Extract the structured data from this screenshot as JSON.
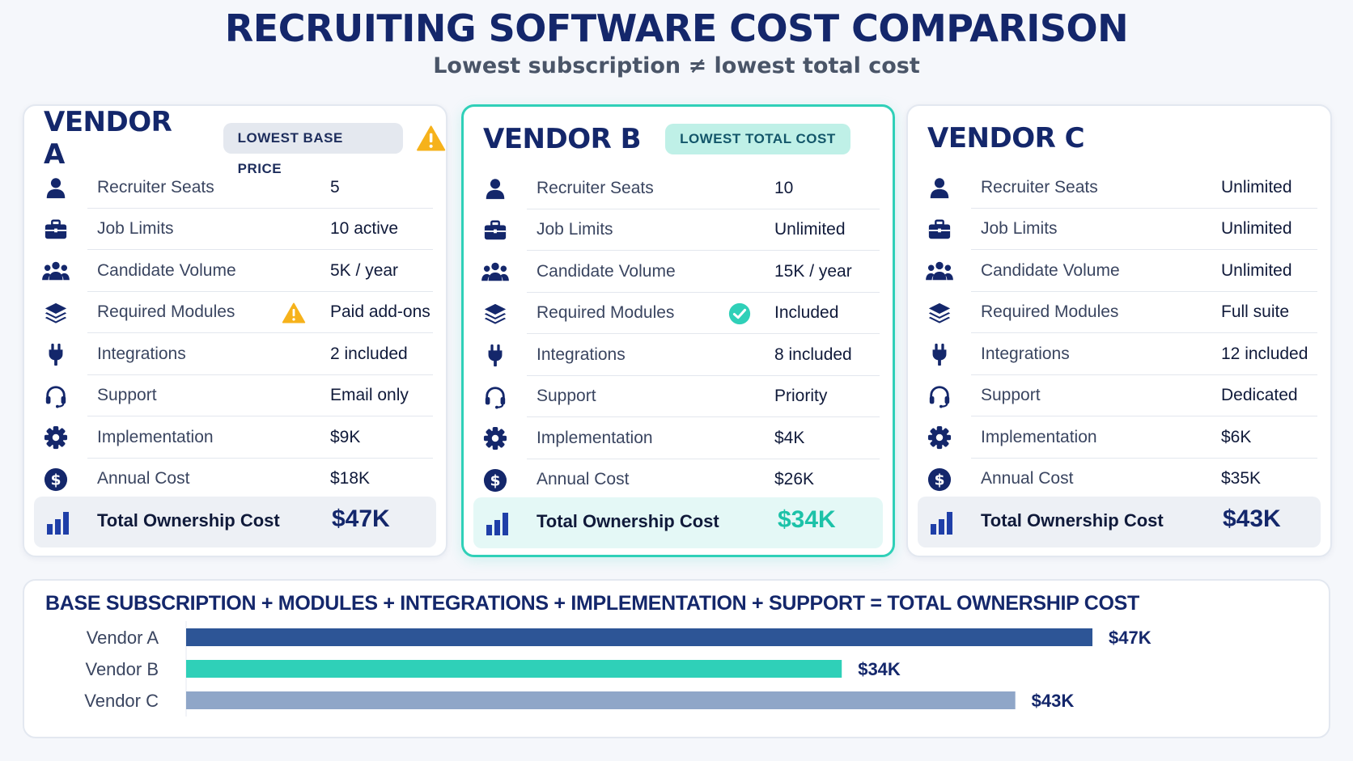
{
  "header": {
    "title": "RECRUITING SOFTWARE COST COMPARISON",
    "subtitle": "Lowest subscription ≠ lowest total cost"
  },
  "row_labels": [
    "Recruiter Seats",
    "Job Limits",
    "Candidate Volume",
    "Required Modules",
    "Integrations",
    "Support",
    "Implementation",
    "Annual Cost"
  ],
  "row_icons": [
    "user-icon",
    "briefcase-icon",
    "group-icon",
    "layers-icon",
    "plug-icon",
    "headset-icon",
    "gear-icon",
    "dollar-icon"
  ],
  "total_label": "Total Ownership Cost",
  "vendors": [
    {
      "name": "VENDOR A",
      "badge": "LOWEST BASE PRICE",
      "badge_style": "gray",
      "header_icon": "warning-icon",
      "values": [
        "5",
        "10 active",
        "5K / year",
        "Paid add-ons",
        "2 included",
        "Email only",
        "$9K",
        "$18K"
      ],
      "modules_status_icon": "warning-icon",
      "total": "$47K"
    },
    {
      "name": "VENDOR B",
      "badge": "LOWEST TOTAL COST",
      "badge_style": "teal",
      "highlighted": true,
      "values": [
        "10",
        "Unlimited",
        "15K / year",
        "Included",
        "8 included",
        "Priority",
        "$4K",
        "$26K"
      ],
      "modules_status_icon": "check-circle-icon",
      "total": "$34K"
    },
    {
      "name": "VENDOR C",
      "badge": "",
      "values": [
        "Unlimited",
        "Unlimited",
        "Unlimited",
        "Full suite",
        "12 included",
        "Dedicated",
        "$6K",
        "$35K"
      ],
      "total": "$43K"
    }
  ],
  "colors": {
    "navy": "#14276b",
    "teal": "#2fd0b8",
    "bar_a": "#2d5596",
    "bar_b": "#2fd0b8",
    "bar_c": "#8fa6c8",
    "warning": "#f6b21b"
  },
  "chart_data": {
    "type": "bar",
    "orientation": "horizontal",
    "title": "BASE SUBSCRIPTION + MODULES + INTEGRATIONS + IMPLEMENTATION + SUPPORT  =  TOTAL OWNERSHIP COST",
    "categories": [
      "Vendor A",
      "Vendor B",
      "Vendor C"
    ],
    "values": [
      47,
      34,
      43
    ],
    "value_labels": [
      "$47K",
      "$34K",
      "$43K"
    ],
    "unit": "$K",
    "xlim": [
      0,
      47
    ],
    "grid": false,
    "colors": [
      "#2d5596",
      "#2fd0b8",
      "#8fa6c8"
    ]
  }
}
